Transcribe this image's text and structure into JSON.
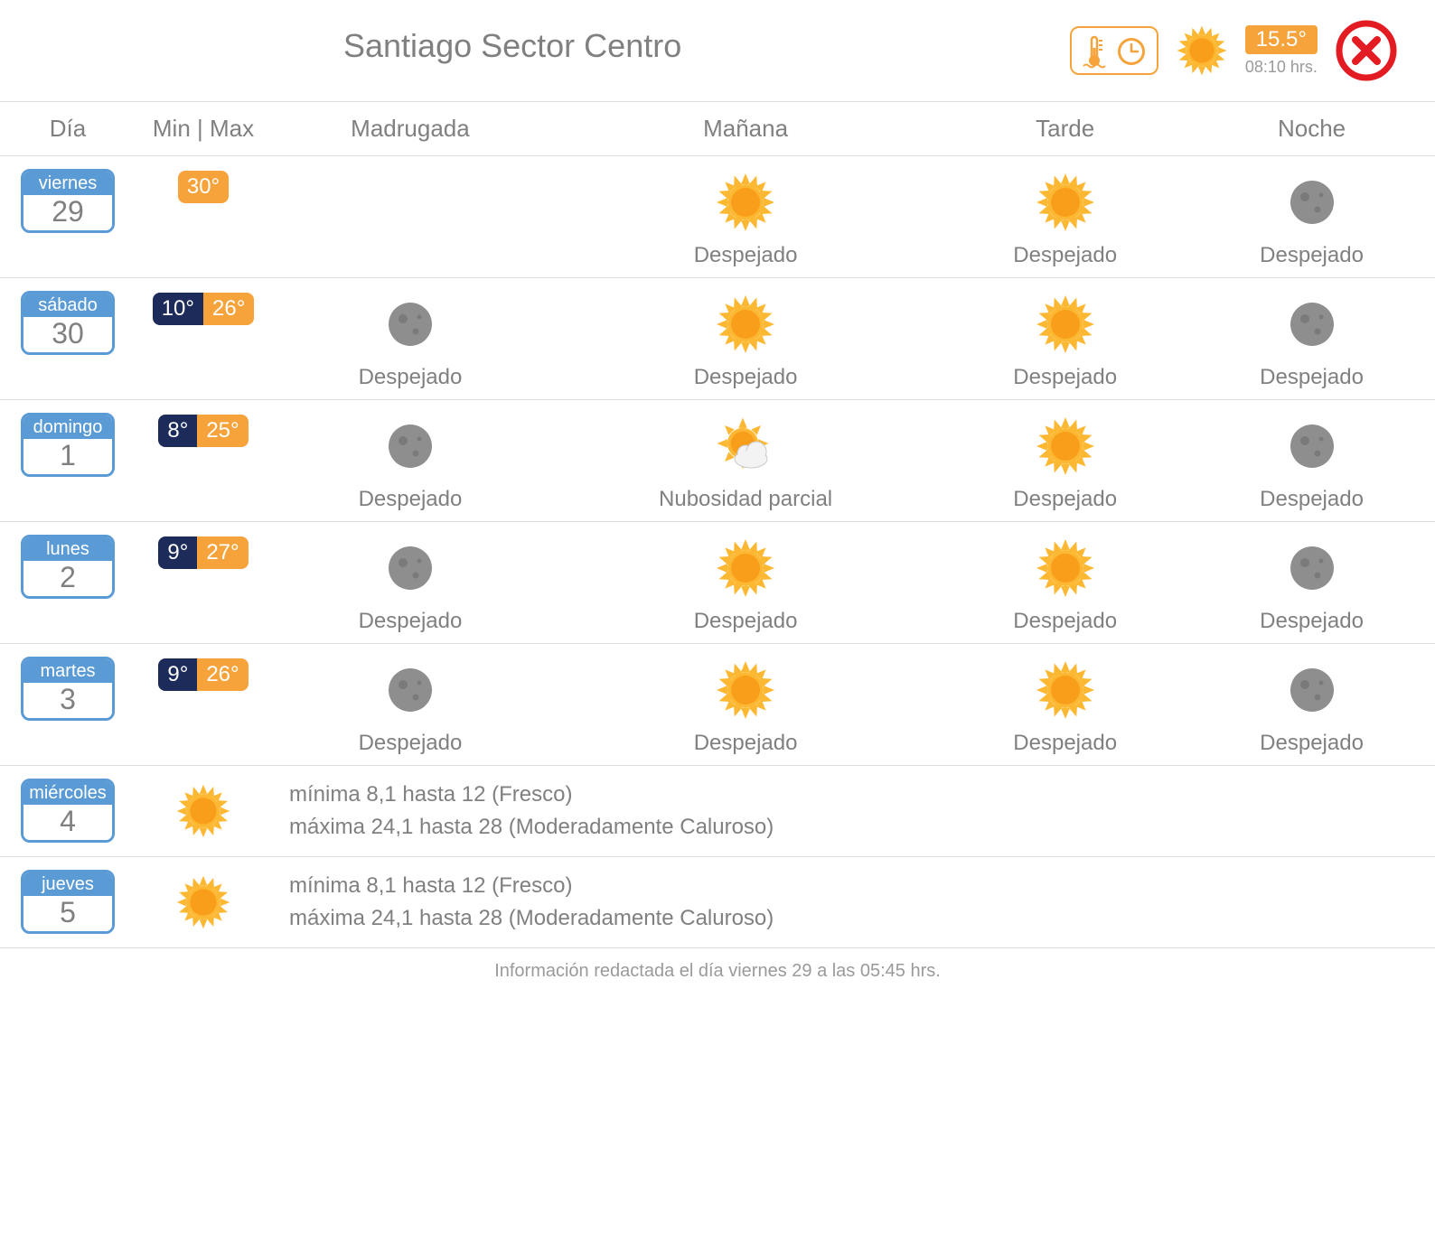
{
  "colors": {
    "accent_blue": "#5b9bd5",
    "accent_orange": "#f5a33a",
    "dark_navy": "#1c2b5a",
    "close_red": "#e31b23",
    "text_gray": "#808080",
    "border_gray": "#dddddd",
    "moon_gray": "#8e8e8e",
    "moon_dark": "#7a7a7a",
    "sun_fill": "#fdb833",
    "sun_core": "#f99e1a",
    "cloud_fill": "#f3f3f3",
    "cloud_stroke": "#c9c9c9"
  },
  "header": {
    "title": "Santiago Sector Centro",
    "current_temp": "15.5°",
    "current_time": "08:10 hrs."
  },
  "table": {
    "headers": {
      "day": "Día",
      "minmax": "Min | Max",
      "periods": [
        "Madrugada",
        "Mañana",
        "Tarde",
        "Noche"
      ]
    },
    "rows": [
      {
        "type": "detail",
        "day_name": "viernes",
        "day_num": "29",
        "min": null,
        "max": "30°",
        "periods": [
          null,
          {
            "icon": "sun",
            "label": "Despejado"
          },
          {
            "icon": "sun",
            "label": "Despejado"
          },
          {
            "icon": "moon",
            "label": "Despejado"
          }
        ]
      },
      {
        "type": "detail",
        "day_name": "sábado",
        "day_num": "30",
        "min": "10°",
        "max": "26°",
        "periods": [
          {
            "icon": "moon",
            "label": "Despejado"
          },
          {
            "icon": "sun",
            "label": "Despejado"
          },
          {
            "icon": "sun",
            "label": "Despejado"
          },
          {
            "icon": "moon",
            "label": "Despejado"
          }
        ]
      },
      {
        "type": "detail",
        "day_name": "domingo",
        "day_num": "1",
        "min": "8°",
        "max": "25°",
        "periods": [
          {
            "icon": "moon",
            "label": "Despejado"
          },
          {
            "icon": "partly",
            "label": "Nubosidad parcial"
          },
          {
            "icon": "sun",
            "label": "Despejado"
          },
          {
            "icon": "moon",
            "label": "Despejado"
          }
        ]
      },
      {
        "type": "detail",
        "day_name": "lunes",
        "day_num": "2",
        "min": "9°",
        "max": "27°",
        "periods": [
          {
            "icon": "moon",
            "label": "Despejado"
          },
          {
            "icon": "sun",
            "label": "Despejado"
          },
          {
            "icon": "sun",
            "label": "Despejado"
          },
          {
            "icon": "moon",
            "label": "Despejado"
          }
        ]
      },
      {
        "type": "detail",
        "day_name": "martes",
        "day_num": "3",
        "min": "9°",
        "max": "26°",
        "periods": [
          {
            "icon": "moon",
            "label": "Despejado"
          },
          {
            "icon": "sun",
            "label": "Despejado"
          },
          {
            "icon": "sun",
            "label": "Despejado"
          },
          {
            "icon": "moon",
            "label": "Despejado"
          }
        ]
      },
      {
        "type": "summary",
        "day_name": "miércoles",
        "day_num": "4",
        "icon": "sun",
        "line1": "mínima 8,1 hasta 12 (Fresco)",
        "line2": "máxima 24,1 hasta 28 (Moderadamente Caluroso)"
      },
      {
        "type": "summary",
        "day_name": "jueves",
        "day_num": "5",
        "icon": "sun",
        "line1": "mínima 8,1 hasta 12 (Fresco)",
        "line2": "máxima 24,1 hasta 28 (Moderadamente Caluroso)"
      }
    ]
  },
  "footer": "Información redactada el día viernes 29 a las 05:45 hrs."
}
